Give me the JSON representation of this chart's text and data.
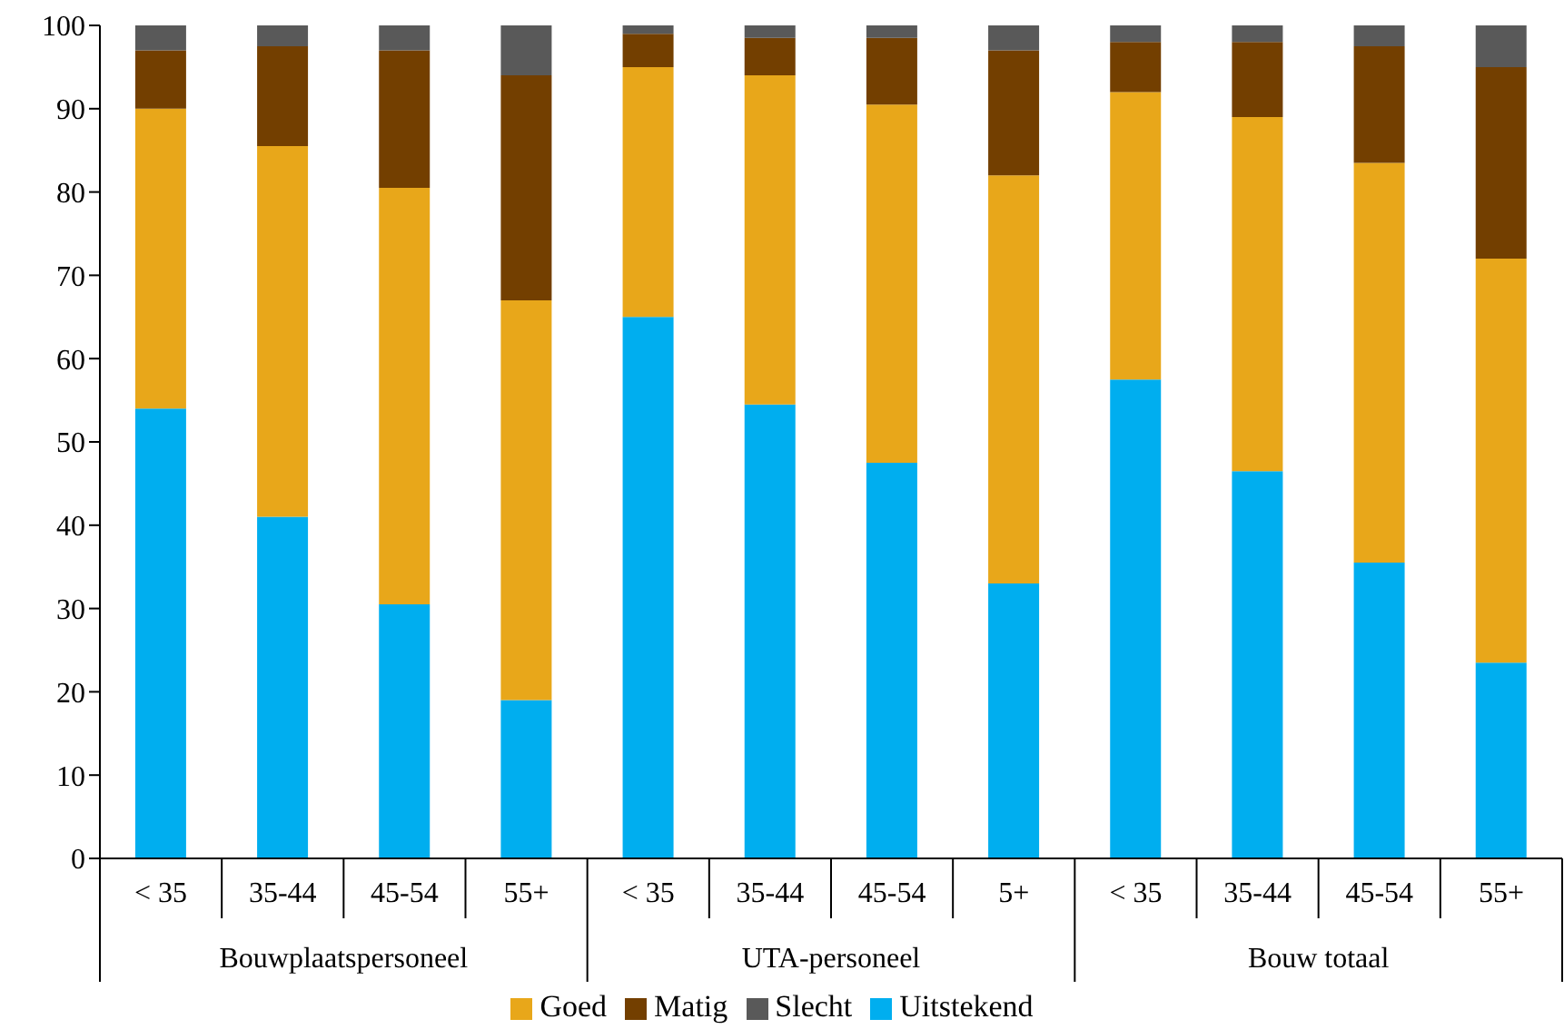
{
  "chart_data": {
    "type": "bar",
    "stacked": true,
    "categories": [
      "< 35",
      "35-44",
      "45-54",
      "55+",
      "< 35",
      "35-44",
      "45-54",
      "5+",
      "< 35",
      "35-44",
      "45-54",
      "55+"
    ],
    "annotations": [
      "Bouwplaatspersoneel",
      "UTA-personeel",
      "Bouw totaal"
    ],
    "series": [
      {
        "name": "Uitstekend",
        "color": "#00aeef",
        "values": [
          54,
          41,
          30.5,
          19,
          65,
          54.5,
          47.5,
          33,
          57.5,
          46.5,
          35.5,
          23.5
        ]
      },
      {
        "name": "Goed",
        "color": "#e8a71a",
        "values": [
          36,
          44.5,
          50,
          48,
          30,
          39.5,
          43,
          49,
          34.5,
          42.5,
          48,
          48.5
        ]
      },
      {
        "name": "Matig",
        "color": "#733f00",
        "values": [
          7,
          12,
          16.5,
          27,
          4,
          4.5,
          8,
          15,
          6,
          9,
          14,
          23
        ]
      },
      {
        "name": "Slecht",
        "color": "#595959",
        "values": [
          3,
          2.5,
          3,
          6,
          1,
          1.5,
          1.5,
          3,
          2,
          2,
          2.5,
          5
        ]
      }
    ],
    "ylim": [
      0,
      100
    ],
    "yticks": [
      0,
      10,
      20,
      30,
      40,
      50,
      60,
      70,
      80,
      90,
      100
    ],
    "grid": false,
    "legend": "bottom"
  }
}
